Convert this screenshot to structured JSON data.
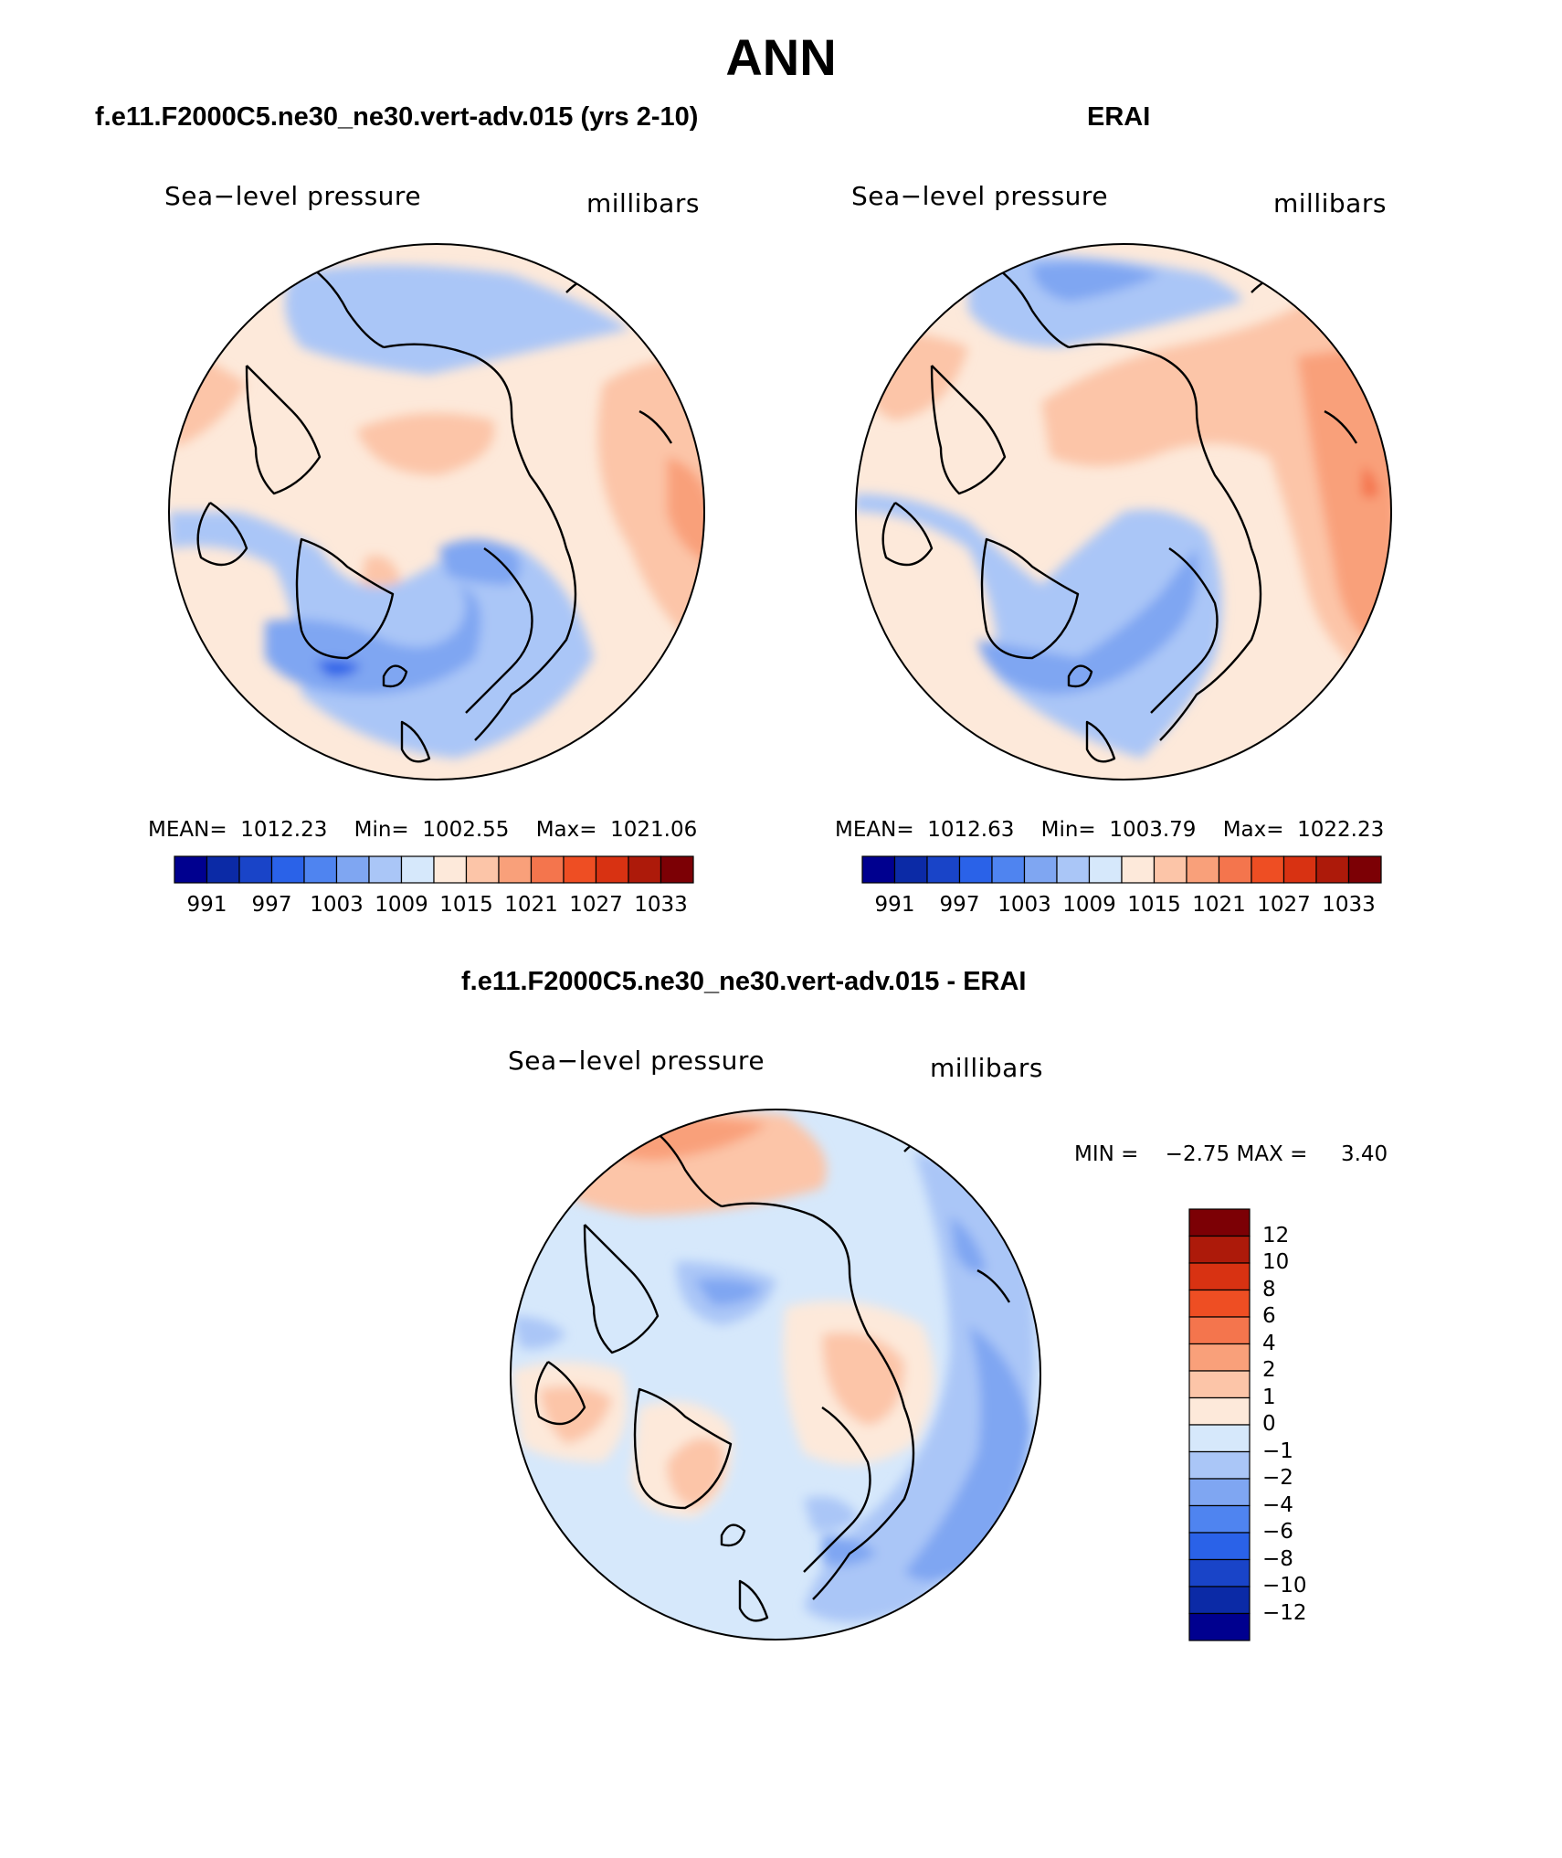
{
  "title": "ANN",
  "panels": [
    {
      "id": "model",
      "title": "f.e11.F2000C5.ne30_ne30.vert-adv.015 (yrs 2-10)",
      "variable": "Sea−level pressure",
      "units": "millibars",
      "stats": {
        "mean_label": "MEAN=",
        "mean": "1012.23",
        "min_label": "Min=",
        "min": "1002.55",
        "max_label": "Max=",
        "max": "1021.06"
      }
    },
    {
      "id": "obs",
      "title": "ERAI",
      "variable": "Sea−level pressure",
      "units": "millibars",
      "stats": {
        "mean_label": "MEAN=",
        "mean": "1012.63",
        "min_label": "Min=",
        "min": "1003.79",
        "max_label": "Max=",
        "max": "1022.23"
      }
    }
  ],
  "abs_colorbar": {
    "colors": [
      "#00008f",
      "#0b2aa6",
      "#1944c8",
      "#2a62e8",
      "#4f84f0",
      "#7fa6f2",
      "#aac6f7",
      "#d6e8fb",
      "#fde9da",
      "#fcc5a8",
      "#f9a07a",
      "#f4754d",
      "#ee4e23",
      "#d83212",
      "#ad1a0a",
      "#7c0005"
    ],
    "tick_labels": [
      "991",
      "997",
      "1003",
      "1009",
      "1015",
      "1021",
      "1027",
      "1033"
    ]
  },
  "diff_panel": {
    "title": "f.e11.F2000C5.ne30_ne30.vert-adv.015 - ERAI",
    "variable": "Sea−level pressure",
    "units": "millibars",
    "min_label": "MIN =",
    "min": "−2.75",
    "max_label": "MAX =",
    "max": "3.40"
  },
  "diff_colorbar": {
    "colors": [
      "#00008f",
      "#0b2aa6",
      "#1944c8",
      "#2a62e8",
      "#4f84f0",
      "#7fa6f2",
      "#aac6f7",
      "#d6e8fb",
      "#fde9da",
      "#fcc5a8",
      "#f9a07a",
      "#f4754d",
      "#ee4e23",
      "#d83212",
      "#ad1a0a",
      "#7c0005"
    ],
    "tick_labels": [
      "12",
      "10",
      "8",
      "6",
      "4",
      "2",
      "1",
      "0",
      "−1",
      "−2",
      "−4",
      "−6",
      "−8",
      "−10",
      "−12"
    ]
  },
  "field_colors": {
    "deep_blue": "#2a62e8",
    "mid_blue": "#7fa6f2",
    "light_blue": "#aac6f7",
    "pale_blue": "#d6e8fb",
    "pale_peach": "#fde9da",
    "peach": "#fcc5a8",
    "salmon": "#f9a07a",
    "orange": "#f4754d"
  }
}
